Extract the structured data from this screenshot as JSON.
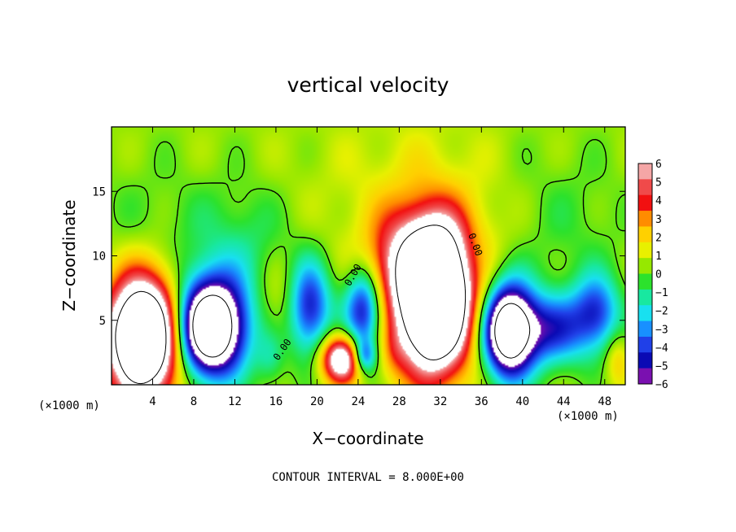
{
  "chart_data": {
    "type": "heatmap",
    "title": "vertical velocity",
    "xlabel": "X−coordinate",
    "ylabel": "Z−coordinate",
    "x_unit": "(×1000 m)",
    "z_unit": "(×1000 m)",
    "xlim": [
      0,
      50
    ],
    "ylim": [
      0,
      20
    ],
    "x_ticks": [
      4,
      8,
      12,
      16,
      20,
      24,
      28,
      32,
      36,
      40,
      44,
      48
    ],
    "y_ticks": [
      5,
      10,
      15
    ],
    "colorbar": {
      "levels": [
        6,
        5,
        4,
        3,
        2,
        1,
        0,
        -1,
        -2,
        -3,
        -4,
        -5,
        -6
      ],
      "level_labels": [
        "6",
        "5",
        "4",
        "3",
        "2",
        "1",
        "0",
        "−1",
        "−2",
        "−3",
        "−4",
        "−5",
        "−6"
      ],
      "colors": [
        "#f5a6a6",
        "#f04a4a",
        "#f21010",
        "#ff8c00",
        "#ffd000",
        "#e8f000",
        "#96e800",
        "#2ce22c",
        "#18e8a0",
        "#18e0f0",
        "#1890ff",
        "#2040e8",
        "#0a0ab4",
        "#7a10b0"
      ]
    },
    "contour_interval_text": "CONTOUR INTERVAL = 8.000E+00",
    "contour_labels": [
      "0.00",
      "0.00",
      "0.00"
    ],
    "background_value": 0.5,
    "features": [
      {
        "x": 3.2,
        "z": 3.8,
        "sx": 2.6,
        "sz": 3.3,
        "w": 14
      },
      {
        "x": 9.5,
        "z": 4.4,
        "sx": 2.4,
        "sz": 2.6,
        "w": -13
      },
      {
        "x": 31.4,
        "z": 6.3,
        "sx": 2.5,
        "sz": 3.7,
        "w": 15
      },
      {
        "x": 30.4,
        "z": 10.5,
        "sx": 3.8,
        "sz": 2.8,
        "w": 4
      },
      {
        "x": 38.6,
        "z": 4.2,
        "sx": 1.7,
        "sz": 2.5,
        "w": -11
      },
      {
        "x": 22.4,
        "z": 2.0,
        "sx": 1.4,
        "sz": 1.3,
        "w": 8
      },
      {
        "x": 19.2,
        "z": 6.0,
        "sx": 1.5,
        "sz": 2.5,
        "w": -6
      },
      {
        "x": 24.5,
        "z": 6.0,
        "sx": 1.3,
        "sz": 2.5,
        "w": -6
      },
      {
        "x": 24.6,
        "z": 2.2,
        "sx": 0.8,
        "sz": 0.9,
        "w": -4
      },
      {
        "x": 42.7,
        "z": 4.3,
        "sx": 2.8,
        "sz": 2.0,
        "w": -4.8
      },
      {
        "x": 47.2,
        "z": 5.7,
        "sx": 1.6,
        "sz": 2.0,
        "w": -4.2
      },
      {
        "x": 17.0,
        "z": 6.5,
        "sx": 2.0,
        "sz": 2.4,
        "w": 1.6
      },
      {
        "x": 13.0,
        "z": 10.0,
        "sx": 3.0,
        "sz": 3.5,
        "w": -1.2
      },
      {
        "x": 6.0,
        "z": 12.0,
        "sx": 6.0,
        "sz": 5.0,
        "w": -0.9
      },
      {
        "x": 30.0,
        "z": 16.0,
        "sx": 5.0,
        "sz": 3.5,
        "w": 0.9
      },
      {
        "x": 26.2,
        "z": 8.8,
        "sx": 2.2,
        "sz": 2.2,
        "w": 1.6
      },
      {
        "x": 35.3,
        "z": 9.6,
        "sx": 1.2,
        "sz": 1.7,
        "w": -1.0
      },
      {
        "x": 44.5,
        "z": 12.5,
        "sx": 4.0,
        "sz": 4.0,
        "w": -0.8
      },
      {
        "x": 49.2,
        "z": 2.0,
        "sx": 0.8,
        "sz": 1.5,
        "w": 1.8
      },
      {
        "x": 15.5,
        "z": 2.0,
        "sx": 1.0,
        "sz": 1.5,
        "w": -1.6
      },
      {
        "x": 27.5,
        "z": 2.5,
        "sx": 1.0,
        "sz": 1.5,
        "w": 1.3
      },
      {
        "x": 8.0,
        "z": 17.0,
        "sx": 5.0,
        "sz": 3.0,
        "w": 0.3
      },
      {
        "x": 20.0,
        "z": 16.0,
        "sx": 4.0,
        "sz": 3.0,
        "w": 0.2
      }
    ]
  }
}
